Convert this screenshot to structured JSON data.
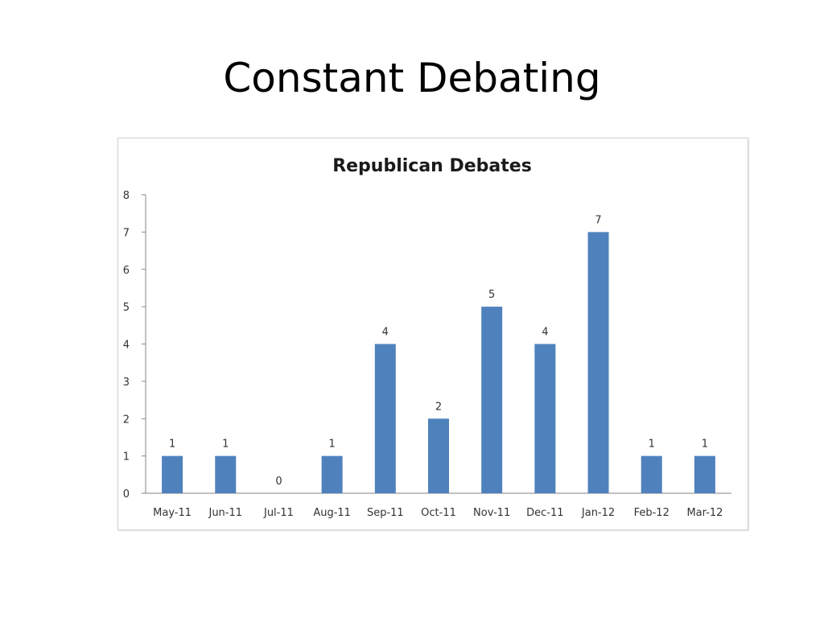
{
  "slide": {
    "title": "Constant Debating"
  },
  "chart_data": {
    "type": "bar",
    "title": "Republican Debates",
    "xlabel": "",
    "ylabel": "",
    "categories": [
      "May-11",
      "Jun-11",
      "Jul-11",
      "Aug-11",
      "Sep-11",
      "Oct-11",
      "Nov-11",
      "Dec-11",
      "Jan-12",
      "Feb-12",
      "Mar-12"
    ],
    "values": [
      1,
      1,
      0,
      1,
      4,
      2,
      5,
      4,
      7,
      1,
      1
    ],
    "ylim": [
      0,
      8
    ],
    "yticks": [
      0,
      1,
      2,
      3,
      4,
      5,
      6,
      7,
      8
    ],
    "data_labels": true,
    "grid": false,
    "legend": "none",
    "bar_color": "#4f81bd"
  }
}
